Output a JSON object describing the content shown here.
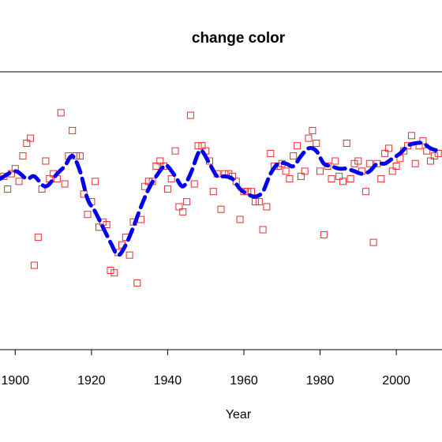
{
  "chart_data": {
    "type": "scatter",
    "title": "change color",
    "xlabel": "Year",
    "ylabel": "",
    "xlim": [
      1896,
      2012
    ],
    "ylim": [
      0,
      100
    ],
    "x_ticks": [
      1900,
      1920,
      1940,
      1960,
      1980,
      2000
    ],
    "x_tick_labels": [
      "1900",
      "1920",
      "1940",
      "1960",
      "1980",
      "2000"
    ],
    "colors": {
      "points": "#e03030",
      "smooth": "#0000ee"
    },
    "grid": false,
    "points": [
      [
        1897,
        62
      ],
      [
        1898,
        57
      ],
      [
        1899,
        63
      ],
      [
        1900,
        65
      ],
      [
        1901,
        60
      ],
      [
        1902,
        70
      ],
      [
        1903,
        75
      ],
      [
        1904,
        77
      ],
      [
        1905,
        27
      ],
      [
        1906,
        38
      ],
      [
        1907,
        57
      ],
      [
        1908,
        68
      ],
      [
        1909,
        61
      ],
      [
        1910,
        63
      ],
      [
        1911,
        61
      ],
      [
        1912,
        87
      ],
      [
        1913,
        59
      ],
      [
        1914,
        70
      ],
      [
        1915,
        80
      ],
      [
        1916,
        70
      ],
      [
        1917,
        70
      ],
      [
        1918,
        55
      ],
      [
        1919,
        47
      ],
      [
        1920,
        52
      ],
      [
        1921,
        60
      ],
      [
        1922,
        42
      ],
      [
        1923,
        44
      ],
      [
        1924,
        43
      ],
      [
        1925,
        25
      ],
      [
        1926,
        24
      ],
      [
        1927,
        32
      ],
      [
        1928,
        35
      ],
      [
        1929,
        38
      ],
      [
        1930,
        31
      ],
      [
        1931,
        44
      ],
      [
        1932,
        20
      ],
      [
        1933,
        45
      ],
      [
        1934,
        58
      ],
      [
        1935,
        60
      ],
      [
        1936,
        60
      ],
      [
        1937,
        66
      ],
      [
        1938,
        68
      ],
      [
        1939,
        66
      ],
      [
        1940,
        57
      ],
      [
        1941,
        61
      ],
      [
        1942,
        72
      ],
      [
        1943,
        50
      ],
      [
        1944,
        48
      ],
      [
        1945,
        52
      ],
      [
        1946,
        86
      ],
      [
        1947,
        59
      ],
      [
        1948,
        74
      ],
      [
        1949,
        74
      ],
      [
        1950,
        72
      ],
      [
        1951,
        68
      ],
      [
        1952,
        56
      ],
      [
        1953,
        63
      ],
      [
        1954,
        49
      ],
      [
        1955,
        63
      ],
      [
        1956,
        63
      ],
      [
        1957,
        62
      ],
      [
        1958,
        60
      ],
      [
        1959,
        45
      ],
      [
        1960,
        56
      ],
      [
        1961,
        56
      ],
      [
        1962,
        56
      ],
      [
        1963,
        52
      ],
      [
        1964,
        52
      ],
      [
        1965,
        41
      ],
      [
        1966,
        50
      ],
      [
        1967,
        71
      ],
      [
        1968,
        66
      ],
      [
        1969,
        66
      ],
      [
        1970,
        67
      ],
      [
        1971,
        64
      ],
      [
        1972,
        61
      ],
      [
        1973,
        70
      ],
      [
        1974,
        74
      ],
      [
        1975,
        62
      ],
      [
        1976,
        64
      ],
      [
        1977,
        77
      ],
      [
        1978,
        80
      ],
      [
        1979,
        75
      ],
      [
        1980,
        64
      ],
      [
        1981,
        39
      ],
      [
        1982,
        66
      ],
      [
        1983,
        61
      ],
      [
        1984,
        68
      ],
      [
        1985,
        62
      ],
      [
        1986,
        60
      ],
      [
        1987,
        75
      ],
      [
        1988,
        61
      ],
      [
        1989,
        67
      ],
      [
        1990,
        68
      ],
      [
        1991,
        64
      ],
      [
        1992,
        56
      ],
      [
        1993,
        67
      ],
      [
        1994,
        36
      ],
      [
        1995,
        67
      ],
      [
        1996,
        61
      ],
      [
        1997,
        71
      ],
      [
        1998,
        73
      ],
      [
        1999,
        64
      ],
      [
        2000,
        66
      ],
      [
        2001,
        69
      ],
      [
        2002,
        72
      ],
      [
        2003,
        74
      ],
      [
        2004,
        78
      ],
      [
        2005,
        67
      ],
      [
        2006,
        74
      ],
      [
        2007,
        76
      ],
      [
        2008,
        72
      ],
      [
        2009,
        68
      ],
      [
        2010,
        70
      ],
      [
        2011,
        71
      ]
    ],
    "smooth": [
      [
        1896,
        61
      ],
      [
        1900,
        64
      ],
      [
        1903,
        61
      ],
      [
        1905,
        62
      ],
      [
        1908,
        58
      ],
      [
        1911,
        63
      ],
      [
        1913,
        66
      ],
      [
        1915,
        70
      ],
      [
        1917,
        64
      ],
      [
        1919,
        53
      ],
      [
        1921,
        48
      ],
      [
        1923,
        42
      ],
      [
        1925,
        36
      ],
      [
        1927,
        31
      ],
      [
        1929,
        35
      ],
      [
        1931,
        42
      ],
      [
        1933,
        50
      ],
      [
        1935,
        57
      ],
      [
        1937,
        62
      ],
      [
        1939,
        66
      ],
      [
        1940,
        66
      ],
      [
        1942,
        62
      ],
      [
        1944,
        58
      ],
      [
        1946,
        63
      ],
      [
        1948,
        71
      ],
      [
        1949,
        72
      ],
      [
        1951,
        67
      ],
      [
        1953,
        62
      ],
      [
        1955,
        62
      ],
      [
        1957,
        61
      ],
      [
        1959,
        57
      ],
      [
        1961,
        55
      ],
      [
        1963,
        54
      ],
      [
        1965,
        56
      ],
      [
        1967,
        63
      ],
      [
        1969,
        67
      ],
      [
        1971,
        67
      ],
      [
        1973,
        66
      ],
      [
        1975,
        70
      ],
      [
        1977,
        73
      ],
      [
        1979,
        72
      ],
      [
        1981,
        67
      ],
      [
        1983,
        66
      ],
      [
        1985,
        65
      ],
      [
        1987,
        65
      ],
      [
        1989,
        64
      ],
      [
        1991,
        63
      ],
      [
        1993,
        64
      ],
      [
        1995,
        67
      ],
      [
        1997,
        67
      ],
      [
        1999,
        69
      ],
      [
        2001,
        71
      ],
      [
        2003,
        74
      ],
      [
        2005,
        75
      ],
      [
        2007,
        75
      ],
      [
        2009,
        73
      ],
      [
        2011,
        72
      ]
    ]
  }
}
